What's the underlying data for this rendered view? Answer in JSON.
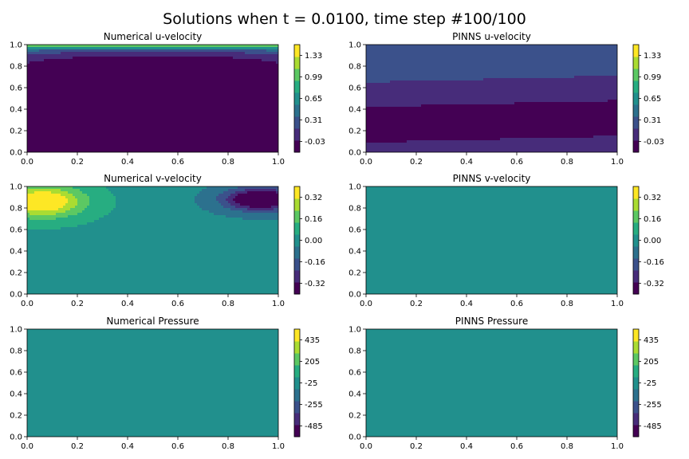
{
  "figure": {
    "title": "Solutions when t = 0.0100, time step #100/100"
  },
  "chart_data": [
    {
      "type": "heatmap",
      "title": "Numerical u-velocity",
      "xlim": [
        0,
        1
      ],
      "ylim": [
        0,
        1
      ],
      "xticks": [
        "0.0",
        "0.2",
        "0.4",
        "0.6",
        "0.8",
        "1.0"
      ],
      "yticks": [
        "0.0",
        "0.2",
        "0.4",
        "0.6",
        "0.8",
        "1.0"
      ],
      "colorbar_ticks": [
        "1.33",
        "0.99",
        "0.65",
        "0.31",
        "-0.03"
      ],
      "colorbar_range": [
        -0.2,
        1.5
      ],
      "field": "lid-driven u: ~1.0 at top lid, strong negative recirculation (~-0.2) in the interior bowl, ~-0.05 near bottom"
    },
    {
      "type": "heatmap",
      "title": "PINNS u-velocity",
      "xlim": [
        0,
        1
      ],
      "ylim": [
        0,
        1
      ],
      "xticks": [
        "0.0",
        "0.2",
        "0.4",
        "0.6",
        "0.8",
        "1.0"
      ],
      "yticks": [
        "0.0",
        "0.2",
        "0.4",
        "0.6",
        "0.8",
        "1.0"
      ],
      "colorbar_ticks": [
        "1.33",
        "0.99",
        "0.65",
        "0.31",
        "-0.03"
      ],
      "colorbar_range": [
        -0.2,
        1.5
      ],
      "field": "horizontal bands: ~0.35 top, ~0.2 upper, ~0.1 middle, ~-0.15 lower band, ~0.0 bottom"
    },
    {
      "type": "heatmap",
      "title": "Numerical v-velocity",
      "xlim": [
        0,
        1
      ],
      "ylim": [
        0,
        1
      ],
      "xticks": [
        "0.0",
        "0.2",
        "0.4",
        "0.6",
        "0.8",
        "1.0"
      ],
      "yticks": [
        "0.0",
        "0.2",
        "0.4",
        "0.6",
        "0.8",
        "1.0"
      ],
      "colorbar_ticks": [
        "0.32",
        "0.16",
        "0.00",
        "-0.16",
        "-0.32"
      ],
      "colorbar_range": [
        -0.4,
        0.4
      ],
      "field": "positive lobe near top-left corner (~0.35), negative lobe near top-right (~-0.4), background ~0.05 left / ~-0.05 right"
    },
    {
      "type": "heatmap",
      "title": "PINNS v-velocity",
      "xlim": [
        0,
        1
      ],
      "ylim": [
        0,
        1
      ],
      "xticks": [
        "0.0",
        "0.2",
        "0.4",
        "0.6",
        "0.8",
        "1.0"
      ],
      "yticks": [
        "0.0",
        "0.2",
        "0.4",
        "0.6",
        "0.8",
        "1.0"
      ],
      "colorbar_ticks": [
        "0.32",
        "0.16",
        "0.00",
        "-0.16",
        "-0.32"
      ],
      "colorbar_range": [
        -0.4,
        0.4
      ],
      "field": "~0.05 upper-left region, ~-0.05 across most of the domain, ~0.05 thin strip at bottom"
    },
    {
      "type": "heatmap",
      "title": "Numerical Pressure",
      "xlim": [
        0,
        1
      ],
      "ylim": [
        0,
        1
      ],
      "xticks": [
        "0.0",
        "0.2",
        "0.4",
        "0.6",
        "0.8",
        "1.0"
      ],
      "yticks": [
        "0.0",
        "0.2",
        "0.4",
        "0.6",
        "0.8",
        "1.0"
      ],
      "colorbar_ticks": [
        "435",
        "205",
        "-25",
        "-255",
        "-485"
      ],
      "colorbar_range": [
        -600,
        550
      ],
      "field": "nearly uniform ~30, small low-pressure spot at top-left corner"
    },
    {
      "type": "heatmap",
      "title": "PINNS Pressure",
      "xlim": [
        0,
        1
      ],
      "ylim": [
        0,
        1
      ],
      "xticks": [
        "0.0",
        "0.2",
        "0.4",
        "0.6",
        "0.8",
        "1.0"
      ],
      "yticks": [
        "0.0",
        "0.2",
        "0.4",
        "0.6",
        "0.8",
        "1.0"
      ],
      "colorbar_ticks": [
        "435",
        "205",
        "-25",
        "-255",
        "-485"
      ],
      "colorbar_range": [
        -600,
        550
      ],
      "field": "uniform ~-60 across the domain"
    }
  ]
}
